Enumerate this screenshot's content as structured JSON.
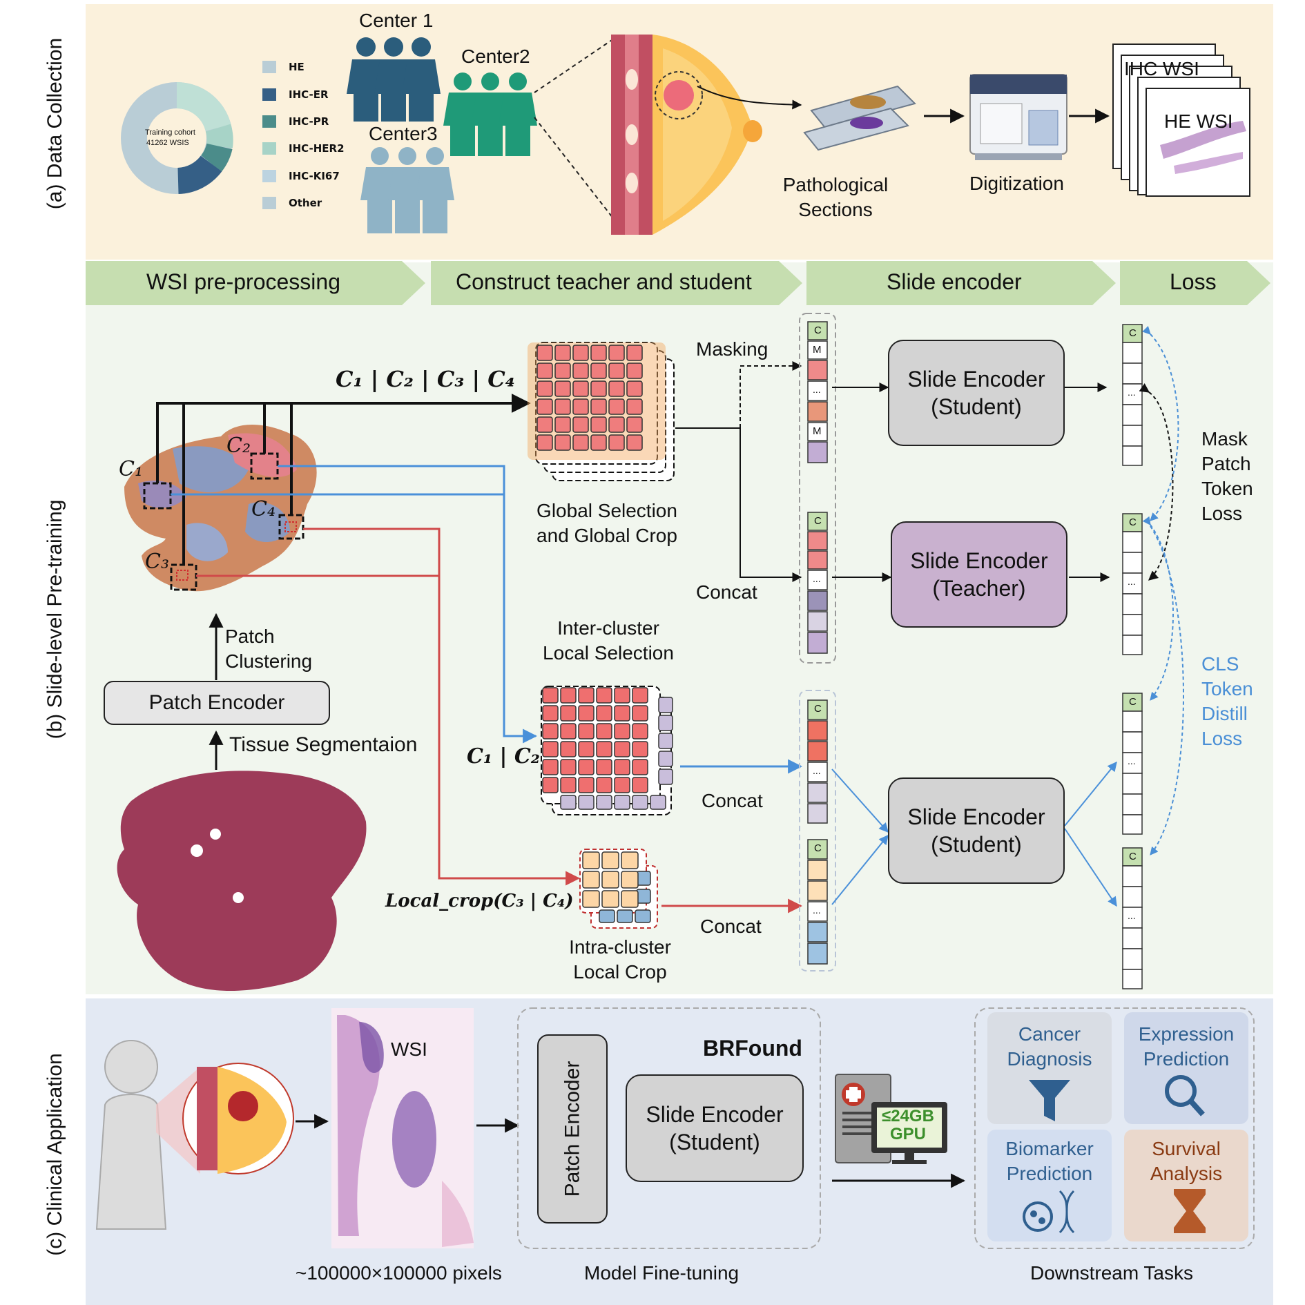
{
  "colors": {
    "panel_a_bg": "#fbf1dc",
    "panel_b_bg": "#f1f6ee",
    "panel_c_bg": "#e3e9f3",
    "header_green": "#c6deb0",
    "student_box": "#d3d3d3",
    "teacher_box": "#c9b1cf",
    "blue_arrow": "#4a90d9",
    "red_arrow": "#d04a4a",
    "cls_blue": "#4a8fd6"
  },
  "panel_labels": {
    "a": "(a) Data Collection",
    "b": "(b) Slide-level Pre-training",
    "c": "(c) Clinical Application"
  },
  "data_collection": {
    "donut_center": [
      "Training cohort",
      "41262 WSIS"
    ],
    "legend": [
      "HE",
      "IHC-ER",
      "IHC-PR",
      "IHC-HER2",
      "IHC-KI67",
      "Other"
    ],
    "centers": [
      "Center 1",
      "Center2",
      "Center3"
    ],
    "pathological": [
      "Pathological",
      "Sections"
    ],
    "digitization": "Digitization",
    "wsi_ihc": "IHC WSI",
    "wsi_he": "HE WSI"
  },
  "stages": [
    "WSI pre-processing",
    "Construct teacher and student",
    "Slide encoder",
    "Loss"
  ],
  "pretraining": {
    "c_all": "C₁ | C₂ | C₃ | C₄",
    "c_12": "C₁ | C₂",
    "local_crop": "Local_crop(C₃ | C₄)",
    "c_labels": [
      "C₁",
      "C₂",
      "C₃",
      "C₄"
    ],
    "masking": "Masking",
    "concat": "Concat",
    "global_sel": [
      "Global Selection",
      "and Global Crop"
    ],
    "inter_cluster": [
      "Inter-cluster",
      "Local Selection"
    ],
    "intra_cluster": [
      "Intra-cluster",
      "Local Crop"
    ],
    "patch_clustering": [
      "Patch",
      "Clustering"
    ],
    "patch_encoder": "Patch Encoder",
    "tissue_seg": "Tissue Segmentaion",
    "enc_student": [
      "Slide Encoder",
      "(Student)"
    ],
    "enc_teacher": [
      "Slide Encoder",
      "(Teacher)"
    ],
    "token_c": "C",
    "token_m": "M",
    "token_dots": "...",
    "mask_loss": [
      "Mask",
      "Patch",
      "Token",
      "Loss"
    ],
    "cls_loss": [
      "CLS",
      "Token",
      "Distill",
      "Loss"
    ]
  },
  "clinical": {
    "wsi": "WSI",
    "pixels": "~100000×100000 pixels",
    "brfound": "BRFound",
    "patch_encoder": "Patch Encoder",
    "slide_encoder": [
      "Slide Encoder",
      "(Student)"
    ],
    "fine_tuning": "Model Fine-tuning",
    "gpu": [
      "≤24GB",
      "GPU"
    ],
    "downstream": "Downstream Tasks",
    "tasks": [
      {
        "name": [
          "Cancer",
          "Diagnosis"
        ],
        "color": "#2f5f8f"
      },
      {
        "name": [
          "Expression",
          "Prediction"
        ],
        "color": "#2f5f8f"
      },
      {
        "name": [
          "Biomarker",
          "Prediction"
        ],
        "color": "#2f5f8f"
      },
      {
        "name": [
          "Survival",
          "Analysis"
        ],
        "color": "#8a3a12"
      }
    ]
  }
}
